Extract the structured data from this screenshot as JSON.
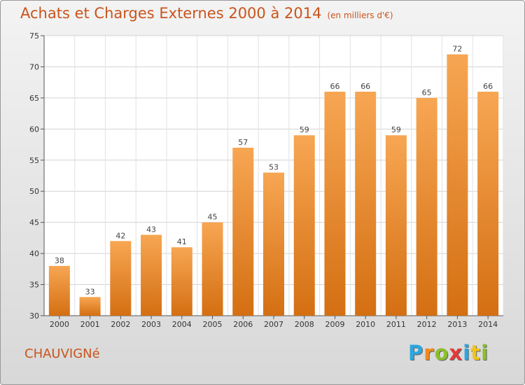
{
  "header": {
    "title": "Achats et Charges Externes 2000 à 2014",
    "unit": "(en milliers d'€)"
  },
  "footer": {
    "town": "CHAUVIGNé",
    "logo_letters": [
      "P",
      "r",
      "o",
      "x",
      "i",
      "t",
      "i"
    ],
    "logo_colors": [
      "#2aa7df",
      "#f08a1c",
      "#8bbf2b",
      "#e23a3a",
      "#2aa7df",
      "#f0c419",
      "#8bbf2b"
    ]
  },
  "chart_data": {
    "type": "bar",
    "categories": [
      "2000",
      "2001",
      "2002",
      "2003",
      "2004",
      "2005",
      "2006",
      "2007",
      "2008",
      "2009",
      "2010",
      "2011",
      "2012",
      "2013",
      "2014"
    ],
    "values": [
      38,
      33,
      42,
      43,
      41,
      45,
      57,
      53,
      59,
      66,
      66,
      59,
      65,
      72,
      66
    ],
    "ylim": [
      30,
      75
    ],
    "yticks": [
      30,
      35,
      40,
      45,
      50,
      55,
      60,
      65,
      70,
      75
    ],
    "grid": true,
    "bar_color_top": "#f7a653",
    "bar_color_bottom": "#d46f12"
  }
}
